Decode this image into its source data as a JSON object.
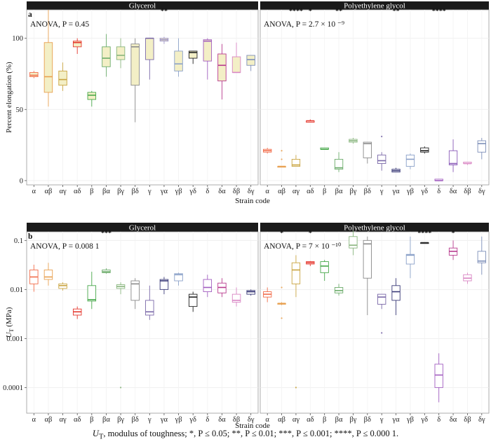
{
  "caption": {
    "symbol": "U",
    "subscript": "T",
    "text": ", modulus of toughness; *, P ≤ 0.05; **, P ≤ 0.01; ***, P ≤ 0.001; ****, P ≤ 0.000 1."
  },
  "chart_data": [
    {
      "panel": "a",
      "type": "boxplot",
      "ylabel": "Percent elongation (%)",
      "xlabel": "Strain code",
      "ylim": [
        -3,
        120
      ],
      "yticks": [
        0,
        50,
        100
      ],
      "ytick_labels": [
        "0",
        "50",
        "100"
      ],
      "scale": "linear",
      "grid": true,
      "categories": [
        "α",
        "αβ",
        "αγ",
        "αδ",
        "β",
        "βα",
        "βγ",
        "βδ",
        "γ",
        "γα",
        "γβ",
        "γδ",
        "δ",
        "δα",
        "δβ",
        "δγ"
      ],
      "facets": [
        {
          "name": "Glycerol",
          "annotation": "ANOVA, P = 0.45",
          "significance": [
            "",
            "",
            "",
            "",
            "",
            "",
            "",
            "",
            "",
            "**",
            "",
            "",
            "",
            "",
            "",
            ""
          ],
          "boxes": [
            {
              "min": 72,
              "q1": 73,
              "median": 74,
              "q3": 76,
              "max": 77,
              "outliers": []
            },
            {
              "min": 52,
              "q1": 62,
              "median": 73,
              "q3": 97,
              "max": 120,
              "outliers": []
            },
            {
              "min": 63,
              "q1": 67,
              "median": 71,
              "q3": 77,
              "max": 83,
              "outliers": []
            },
            {
              "min": 89,
              "q1": 94,
              "median": 97,
              "q3": 98,
              "max": 100,
              "outliers": []
            },
            {
              "min": 52,
              "q1": 57,
              "median": 60,
              "q3": 62,
              "max": 63,
              "outliers": []
            },
            {
              "min": 73,
              "q1": 80,
              "median": 86,
              "q3": 94,
              "max": 103,
              "outliers": []
            },
            {
              "min": 79,
              "q1": 85,
              "median": 88,
              "q3": 94,
              "max": 100,
              "outliers": []
            },
            {
              "min": 41,
              "q1": 67,
              "median": 94,
              "q3": 96,
              "max": 100,
              "outliers": []
            },
            {
              "min": 71,
              "q1": 85,
              "median": 100,
              "q3": 100,
              "max": 100,
              "outliers": []
            },
            {
              "min": 96,
              "q1": 98,
              "median": 99,
              "q3": 100,
              "max": 101,
              "outliers": []
            },
            {
              "min": 73,
              "q1": 77,
              "median": 82,
              "q3": 91,
              "max": 100,
              "outliers": []
            },
            {
              "min": 82,
              "q1": 86,
              "median": 90,
              "q3": 91,
              "max": 91,
              "outliers": []
            },
            {
              "min": 71,
              "q1": 84,
              "median": 98,
              "q3": 99,
              "max": 100,
              "outliers": []
            },
            {
              "min": 57,
              "q1": 70,
              "median": 81,
              "q3": 89,
              "max": 96,
              "outliers": []
            },
            {
              "min": 76,
              "q1": 76,
              "median": 76,
              "q3": 87,
              "max": 97,
              "outliers": []
            },
            {
              "min": 77,
              "q1": 81,
              "median": 85,
              "q3": 88,
              "max": 88,
              "outliers": []
            }
          ],
          "colors": [
            "#f26d4b",
            "#e8a050",
            "#c9a440",
            "#e5372d",
            "#47a84a",
            "#6bab6a",
            "#88b57d",
            "#8a8a8a",
            "#7a68a8",
            "#9c93c8",
            "#8aa0c8",
            "#222222",
            "#a25ec0",
            "#b83a8e",
            "#d986c4",
            "#7d8fb8"
          ]
        },
        {
          "name": "Polyethylene glycol",
          "annotation": "ANOVA, P = 2.7 × 10 ⁻⁹",
          "significance": [
            "",
            "",
            "****",
            "*",
            "",
            "**",
            "",
            "",
            "",
            "**",
            "",
            "",
            "****",
            "",
            "",
            ""
          ],
          "boxes": [
            {
              "min": 19,
              "q1": 20,
              "median": 21,
              "q3": 22,
              "max": 23,
              "outliers": []
            },
            {
              "min": 10,
              "q1": 10,
              "median": 10,
              "q3": 10,
              "max": 10,
              "outliers": [
                15,
                21
              ]
            },
            {
              "min": 10,
              "q1": 10,
              "median": 11,
              "q3": 15,
              "max": 18,
              "outliers": []
            },
            {
              "min": 41,
              "q1": 41,
              "median": 42,
              "q3": 42,
              "max": 43,
              "outliers": []
            },
            {
              "min": 22,
              "q1": 22,
              "median": 22,
              "q3": 23,
              "max": 23,
              "outliers": []
            },
            {
              "min": 6,
              "q1": 8,
              "median": 9,
              "q3": 15,
              "max": 20,
              "outliers": []
            },
            {
              "min": 26,
              "q1": 27,
              "median": 28,
              "q3": 29,
              "max": 30,
              "outliers": []
            },
            {
              "min": 12,
              "q1": 16,
              "median": 26,
              "q3": 27,
              "max": 27,
              "outliers": []
            },
            {
              "min": 7,
              "q1": 12,
              "median": 14,
              "q3": 18,
              "max": 20,
              "outliers": [
                31
              ]
            },
            {
              "min": 6,
              "q1": 6,
              "median": 7,
              "q3": 8,
              "max": 9,
              "outliers": []
            },
            {
              "min": 8,
              "q1": 10,
              "median": 15,
              "q3": 18,
              "max": 19,
              "outliers": []
            },
            {
              "min": 19,
              "q1": 20,
              "median": 21,
              "q3": 23,
              "max": 24,
              "outliers": []
            },
            {
              "min": 0,
              "q1": 0,
              "median": 0,
              "q3": 1,
              "max": 1,
              "outliers": []
            },
            {
              "min": 6,
              "q1": 11,
              "median": 12,
              "q3": 21,
              "max": 29,
              "outliers": []
            },
            {
              "min": 11,
              "q1": 12,
              "median": 12,
              "q3": 13,
              "max": 13,
              "outliers": []
            },
            {
              "min": 15,
              "q1": 20,
              "median": 26,
              "q3": 28,
              "max": 30,
              "outliers": []
            }
          ],
          "colors": [
            "#f26d4b",
            "#e8a050",
            "#c9a440",
            "#e5372d",
            "#47a84a",
            "#6bab6a",
            "#88b57d",
            "#8a8a8a",
            "#7a68a8",
            "#3a3a78",
            "#8aa0c8",
            "#222222",
            "#a25ec0",
            "#8a5ab8",
            "#d986c4",
            "#7d8fb8"
          ]
        }
      ]
    },
    {
      "panel": "b",
      "type": "boxplot",
      "ylabel_symbol": "U",
      "ylabel_subscript": "T",
      "ylabel_unit": " (MPa)",
      "xlabel": "Strain code",
      "ylim": [
        3e-05,
        0.15
      ],
      "yticks": [
        0.0001,
        0.001,
        0.01,
        0.1
      ],
      "ytick_labels": [
        "0.0001",
        "0.001",
        "0.01",
        "0.1"
      ],
      "scale": "log",
      "grid": true,
      "categories": [
        "α",
        "αβ",
        "αγ",
        "αδ",
        "β",
        "βα",
        "βγ",
        "βδ",
        "γ",
        "γα",
        "γβ",
        "γδ",
        "δ",
        "δα",
        "δβ",
        "δγ"
      ],
      "facets": [
        {
          "name": "Glycerol",
          "annotation": "ANOVA, P = 0.008 1",
          "significance": [
            "",
            "",
            "",
            "",
            "",
            "***",
            "",
            "",
            "",
            "",
            "",
            "",
            "",
            "",
            "",
            ""
          ],
          "boxes": [
            {
              "min": 0.009,
              "q1": 0.013,
              "median": 0.018,
              "q3": 0.025,
              "max": 0.032,
              "outliers": []
            },
            {
              "min": 0.012,
              "q1": 0.016,
              "median": 0.018,
              "q3": 0.025,
              "max": 0.035,
              "outliers": []
            },
            {
              "min": 0.0095,
              "q1": 0.0105,
              "median": 0.012,
              "q3": 0.013,
              "max": 0.014,
              "outliers": []
            },
            {
              "min": 0.0025,
              "q1": 0.003,
              "median": 0.0035,
              "q3": 0.004,
              "max": 0.0045,
              "outliers": []
            },
            {
              "min": 0.004,
              "q1": 0.0058,
              "median": 0.0062,
              "q3": 0.012,
              "max": 0.023,
              "outliers": []
            },
            {
              "min": 0.021,
              "q1": 0.022,
              "median": 0.023,
              "q3": 0.025,
              "max": 0.027,
              "outliers": []
            },
            {
              "min": 0.008,
              "q1": 0.0105,
              "median": 0.0115,
              "q3": 0.0125,
              "max": 0.014,
              "outliers": [
                0.0001
              ]
            },
            {
              "min": 0.004,
              "q1": 0.006,
              "median": 0.013,
              "q3": 0.015,
              "max": 0.017,
              "outliers": []
            },
            {
              "min": 0.0024,
              "q1": 0.003,
              "median": 0.0035,
              "q3": 0.006,
              "max": 0.012,
              "outliers": []
            },
            {
              "min": 0.008,
              "q1": 0.01,
              "median": 0.015,
              "q3": 0.016,
              "max": 0.018,
              "outliers": []
            },
            {
              "min": 0.012,
              "q1": 0.015,
              "median": 0.02,
              "q3": 0.021,
              "max": 0.022,
              "outliers": []
            },
            {
              "min": 0.0035,
              "q1": 0.0045,
              "median": 0.007,
              "q3": 0.008,
              "max": 0.009,
              "outliers": []
            },
            {
              "min": 0.007,
              "q1": 0.009,
              "median": 0.011,
              "q3": 0.016,
              "max": 0.02,
              "outliers": []
            },
            {
              "min": 0.007,
              "q1": 0.0085,
              "median": 0.011,
              "q3": 0.0135,
              "max": 0.017,
              "outliers": []
            },
            {
              "min": 0.0045,
              "q1": 0.0055,
              "median": 0.006,
              "q3": 0.008,
              "max": 0.011,
              "outliers": []
            },
            {
              "min": 0.0075,
              "q1": 0.008,
              "median": 0.009,
              "q3": 0.0095,
              "max": 0.01,
              "outliers": []
            }
          ],
          "colors": [
            "#f26d4b",
            "#e8a050",
            "#c9a440",
            "#e5372d",
            "#47a84a",
            "#6bab6a",
            "#88b57d",
            "#8a8a8a",
            "#7a68a8",
            "#3a3a78",
            "#8aa0c8",
            "#222222",
            "#a25ec0",
            "#b83a8e",
            "#d986c4",
            "#3a3a78"
          ]
        },
        {
          "name": "Polyethylene glycol",
          "annotation": "ANOVA, P = 7 × 10 ⁻¹⁰",
          "significance": [
            "",
            "*",
            "",
            "*",
            "",
            "",
            "",
            "",
            "",
            "",
            "",
            "****",
            "",
            "*",
            "",
            ""
          ],
          "boxes": [
            {
              "min": 0.0055,
              "q1": 0.007,
              "median": 0.008,
              "q3": 0.009,
              "max": 0.011,
              "outliers": []
            },
            {
              "min": 0.0048,
              "q1": 0.0052,
              "median": 0.0052,
              "q3": 0.0052,
              "max": 0.0055,
              "outliers": [
                0.0026,
                0.011
              ]
            },
            {
              "min": 0.007,
              "q1": 0.013,
              "median": 0.025,
              "q3": 0.035,
              "max": 0.05,
              "outliers": [
                0.0001
              ]
            },
            {
              "min": 0.03,
              "q1": 0.033,
              "median": 0.035,
              "q3": 0.037,
              "max": 0.038,
              "outliers": []
            },
            {
              "min": 0.015,
              "q1": 0.022,
              "median": 0.03,
              "q3": 0.037,
              "max": 0.04,
              "outliers": []
            },
            {
              "min": 0.0075,
              "q1": 0.0085,
              "median": 0.0095,
              "q3": 0.011,
              "max": 0.013,
              "outliers": []
            },
            {
              "min": 0.05,
              "q1": 0.07,
              "median": 0.08,
              "q3": 0.12,
              "max": 0.16,
              "outliers": []
            },
            {
              "min": 0.003,
              "q1": 0.017,
              "median": 0.085,
              "q3": 0.1,
              "max": 0.12,
              "outliers": []
            },
            {
              "min": 0.004,
              "q1": 0.005,
              "median": 0.007,
              "q3": 0.008,
              "max": 0.008,
              "outliers": [
                0.0013
              ]
            },
            {
              "min": 0.003,
              "q1": 0.006,
              "median": 0.009,
              "q3": 0.012,
              "max": 0.017,
              "outliers": []
            },
            {
              "min": 0.017,
              "q1": 0.033,
              "median": 0.05,
              "q3": 0.052,
              "max": 0.12,
              "outliers": []
            },
            {
              "min": 0.088,
              "q1": 0.088,
              "median": 0.09,
              "q3": 0.09,
              "max": 0.09,
              "outliers": []
            },
            {
              "min": 5e-05,
              "q1": 0.0001,
              "median": 0.00018,
              "q3": 0.0003,
              "max": 0.0005,
              "outliers": []
            },
            {
              "min": 0.04,
              "q1": 0.05,
              "median": 0.06,
              "q3": 0.07,
              "max": 0.1,
              "outliers": []
            },
            {
              "min": 0.013,
              "q1": 0.015,
              "median": 0.017,
              "q3": 0.02,
              "max": 0.022,
              "outliers": []
            },
            {
              "min": 0.02,
              "q1": 0.035,
              "median": 0.038,
              "q3": 0.06,
              "max": 0.12,
              "outliers": []
            }
          ],
          "colors": [
            "#f26d4b",
            "#e8a050",
            "#c9a440",
            "#e5372d",
            "#47a84a",
            "#6bab6a",
            "#88b57d",
            "#8a8a8a",
            "#7a68a8",
            "#3a3a78",
            "#8aa0c8",
            "#222222",
            "#a25ec0",
            "#b83a8e",
            "#d986c4",
            "#7d8fb8"
          ]
        }
      ]
    }
  ]
}
